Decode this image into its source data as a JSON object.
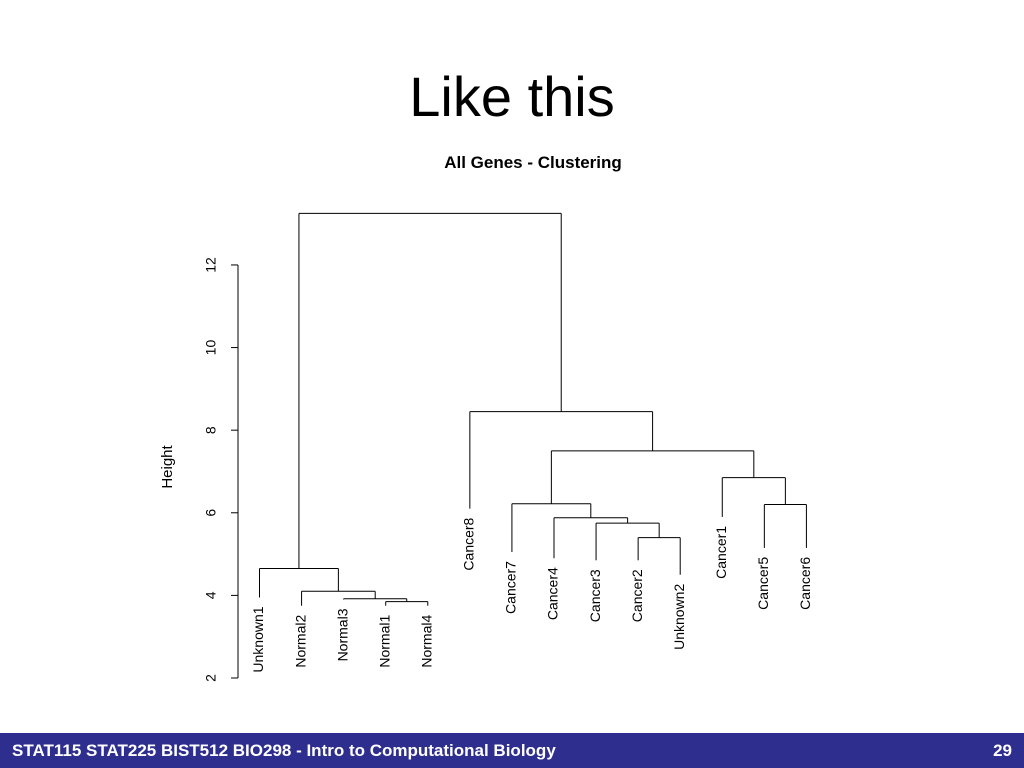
{
  "slide": {
    "title": "Like this",
    "footer_text": "STAT115 STAT225 BIST512 BIO298 - Intro to Computational Biology",
    "page_number": "29",
    "footer_color": "#2e2e8f"
  },
  "chart_data": {
    "type": "dendrogram",
    "title": "All Genes - Clustering",
    "ylabel": "Height",
    "ylim": [
      2,
      13.5
    ],
    "yticks": [
      2,
      4,
      6,
      8,
      10,
      12
    ],
    "leaves": [
      {
        "label": "Unknown1",
        "height": 3.95
      },
      {
        "label": "Normal2",
        "height": 3.75
      },
      {
        "label": "Normal3",
        "height": 3.9
      },
      {
        "label": "Normal1",
        "height": 3.75
      },
      {
        "label": "Normal4",
        "height": 3.75
      },
      {
        "label": "Cancer8",
        "height": 6.1
      },
      {
        "label": "Cancer7",
        "height": 5.05
      },
      {
        "label": "Cancer4",
        "height": 4.9
      },
      {
        "label": "Cancer3",
        "height": 4.85
      },
      {
        "label": "Cancer2",
        "height": 4.85
      },
      {
        "label": "Unknown2",
        "height": 4.5
      },
      {
        "label": "Cancer1",
        "height": 5.9
      },
      {
        "label": "Cancer5",
        "height": 5.15
      },
      {
        "label": "Cancer6",
        "height": 5.15
      }
    ],
    "merges": [
      {
        "left": "Normal1",
        "right": "Normal4",
        "height": 3.85
      },
      {
        "left": "Normal3",
        "right": [
          "Normal1",
          "Normal4"
        ],
        "height": 3.92
      },
      {
        "left": "Normal2",
        "right": [
          "Normal3",
          "Normal1",
          "Normal4"
        ],
        "height": 4.1
      },
      {
        "left": "Unknown1",
        "right": [
          "Normal2",
          "Normal3",
          "Normal1",
          "Normal4"
        ],
        "height": 4.65
      },
      {
        "left": "Cancer2",
        "right": "Unknown2",
        "height": 5.4
      },
      {
        "left": "Cancer3",
        "right": [
          "Cancer2",
          "Unknown2"
        ],
        "height": 5.75
      },
      {
        "left": "Cancer4",
        "right": [
          "Cancer3",
          "Cancer2",
          "Unknown2"
        ],
        "height": 5.88
      },
      {
        "left": "Cancer7",
        "right": [
          "Cancer4",
          "Cancer3",
          "Cancer2",
          "Unknown2"
        ],
        "height": 6.22
      },
      {
        "left": "Cancer5",
        "right": "Cancer6",
        "height": 6.2
      },
      {
        "left": "Cancer1",
        "right": [
          "Cancer5",
          "Cancer6"
        ],
        "height": 6.85
      },
      {
        "left": [
          "Cancer7",
          "Cancer4",
          "Cancer3",
          "Cancer2",
          "Unknown2"
        ],
        "right": [
          "Cancer1",
          "Cancer5",
          "Cancer6"
        ],
        "height": 7.5
      },
      {
        "left": "Cancer8",
        "right": [
          "Cancer7",
          "Cancer4",
          "Cancer3",
          "Cancer2",
          "Unknown2",
          "Cancer1",
          "Cancer5",
          "Cancer6"
        ],
        "height": 8.45
      },
      {
        "left": [
          "Unknown1",
          "Normal2",
          "Normal3",
          "Normal1",
          "Normal4"
        ],
        "right": [
          "Cancer8",
          "Cancer7",
          "Cancer4",
          "Cancer3",
          "Cancer2",
          "Unknown2",
          "Cancer1",
          "Cancer5",
          "Cancer6"
        ],
        "height": 13.25
      }
    ]
  }
}
